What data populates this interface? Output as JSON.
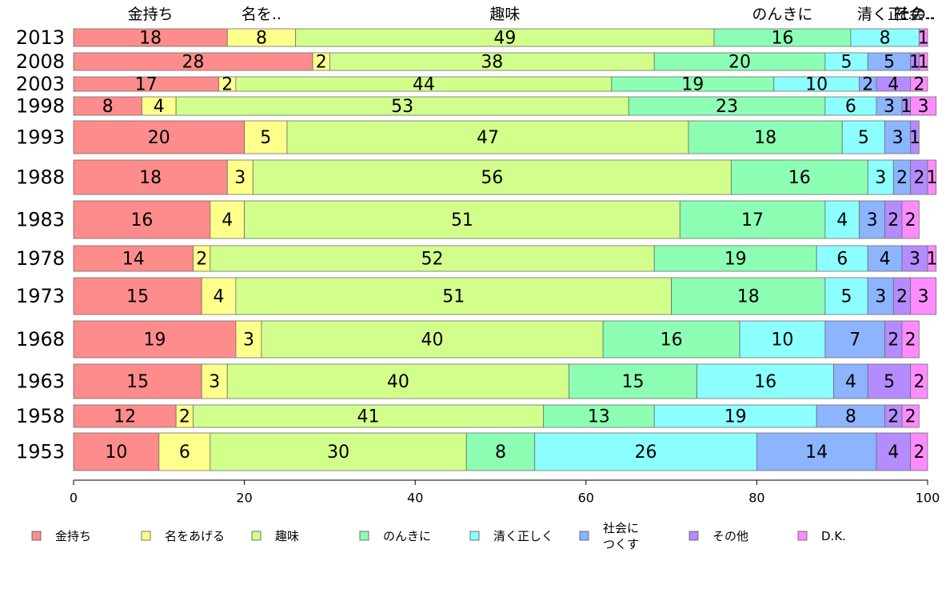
{
  "chart_data": {
    "type": "bar",
    "orientation": "horizontal",
    "stacked": true,
    "title": "",
    "xlabel": "",
    "ylabel": "",
    "xlim": [
      0,
      100
    ],
    "xticks": [
      0,
      20,
      40,
      60,
      80,
      100
    ],
    "grid": false,
    "legend_position": "bottom",
    "categories": [
      "2013",
      "2008",
      "2003",
      "1998",
      "1993",
      "1988",
      "1983",
      "1978",
      "1973",
      "1968",
      "1963",
      "1958",
      "1953"
    ],
    "top_labels": [
      "金持ち",
      "名を..",
      "趣味",
      "のんきに",
      "清く正..",
      "社会..",
      "その.."
    ],
    "series": [
      {
        "name": "金持ち",
        "color": "#ff8c8c",
        "values": [
          18,
          28,
          17,
          8,
          20,
          18,
          16,
          14,
          15,
          19,
          15,
          12,
          10
        ]
      },
      {
        "name": "名をあげる",
        "color": "#ffff8c",
        "values": [
          8,
          2,
          2,
          4,
          5,
          3,
          4,
          2,
          4,
          3,
          3,
          2,
          6
        ]
      },
      {
        "name": "趣味",
        "color": "#d2ff8c",
        "values": [
          49,
          38,
          44,
          53,
          47,
          56,
          51,
          52,
          51,
          40,
          40,
          41,
          30
        ]
      },
      {
        "name": "のんきに",
        "color": "#8cffb4",
        "values": [
          16,
          20,
          19,
          23,
          18,
          16,
          17,
          19,
          18,
          16,
          15,
          13,
          8
        ]
      },
      {
        "name": "清く正しく",
        "color": "#8cffff",
        "values": [
          8,
          5,
          10,
          6,
          5,
          3,
          4,
          6,
          5,
          10,
          16,
          19,
          26
        ]
      },
      {
        "name": "社会に\nつくす",
        "color": "#8cb4ff",
        "values": [
          0,
          5,
          2,
          3,
          3,
          2,
          3,
          4,
          3,
          7,
          4,
          8,
          14
        ]
      },
      {
        "name": "その他",
        "color": "#b48cff",
        "values": [
          0,
          1,
          4,
          1,
          1,
          2,
          2,
          3,
          2,
          2,
          5,
          2,
          4
        ]
      },
      {
        "name": "D.K.",
        "color": "#ff8cff",
        "values": [
          1,
          1,
          2,
          3,
          0,
          1,
          2,
          1,
          3,
          2,
          2,
          2,
          2
        ]
      }
    ]
  }
}
